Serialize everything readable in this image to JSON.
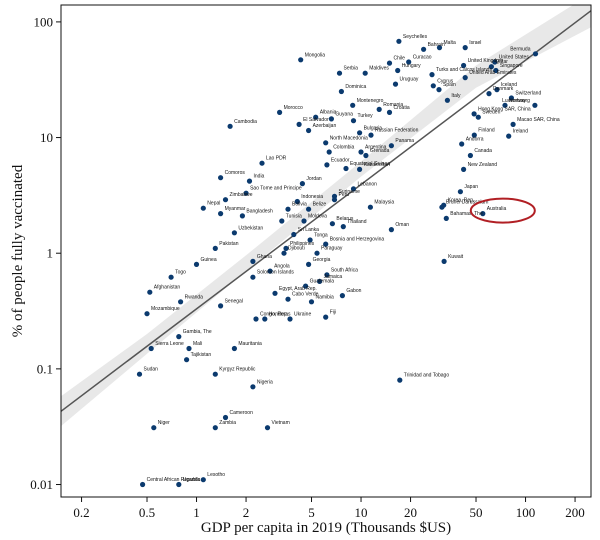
{
  "chart_data": {
    "type": "scatter",
    "title": "",
    "xlabel": "GDP per capita in 2019 (Thousands $US)",
    "ylabel": "% of people fully vaccinated",
    "x_scale": "log",
    "y_scale": "log",
    "xlim": [
      0.15,
      250
    ],
    "ylim": [
      0.0078,
      140
    ],
    "x_ticks": [
      0.2,
      0.5,
      1,
      2,
      5,
      10,
      20,
      50,
      100,
      200
    ],
    "x_tick_labels": [
      "0.2",
      "0.5",
      "1",
      "2",
      "5",
      "10",
      "20",
      "50",
      "100",
      "200"
    ],
    "y_ticks": [
      0.01,
      0.1,
      1,
      10,
      100
    ],
    "y_tick_labels": [
      "0.01",
      "0.1",
      "1",
      "10",
      "100"
    ],
    "grid": false,
    "trend_line": {
      "x": [
        0.15,
        250
      ],
      "y": [
        0.043,
        125
      ]
    },
    "confidence_band": {
      "x": [
        0.15,
        0.5,
        2,
        10,
        50,
        250
      ],
      "lower": [
        0.032,
        0.135,
        0.7,
        4.6,
        27,
        90
      ],
      "upper": [
        0.058,
        0.2,
        0.96,
        6.2,
        42,
        175
      ]
    },
    "highlight": {
      "label": "Australia",
      "x": 55,
      "y": 2.2
    },
    "points": [
      {
        "label": "Seychelles",
        "x": 17,
        "y": 68
      },
      {
        "label": "Bahrain",
        "x": 24,
        "y": 58
      },
      {
        "label": "Malta",
        "x": 30,
        "y": 60
      },
      {
        "label": "Israel",
        "x": 43,
        "y": 60
      },
      {
        "label": "United States",
        "x": 65,
        "y": 45
      },
      {
        "label": "Bermuda",
        "x": 115,
        "y": 53
      },
      {
        "label": "Chile",
        "x": 14.9,
        "y": 44
      },
      {
        "label": "Curacao",
        "x": 19.5,
        "y": 45
      },
      {
        "label": "United Kingdom",
        "x": 42,
        "y": 42
      },
      {
        "label": "Qatar",
        "x": 62,
        "y": 41
      },
      {
        "label": "Mongolia",
        "x": 4.3,
        "y": 47
      },
      {
        "label": "Serbia",
        "x": 7.4,
        "y": 36
      },
      {
        "label": "Maldives",
        "x": 10.6,
        "y": 36
      },
      {
        "label": "Hungary",
        "x": 16.7,
        "y": 38
      },
      {
        "label": "Turks and Caicos Islands",
        "x": 27,
        "y": 35
      },
      {
        "label": "United Arab Emirates",
        "x": 43,
        "y": 33
      },
      {
        "label": "Singapore",
        "x": 66,
        "y": 38
      },
      {
        "label": "Uruguay",
        "x": 16.2,
        "y": 29
      },
      {
        "label": "Cyprus",
        "x": 27.5,
        "y": 28
      },
      {
        "label": "Spain",
        "x": 29.8,
        "y": 26
      },
      {
        "label": "Iceland",
        "x": 67,
        "y": 26
      },
      {
        "label": "Denmark",
        "x": 60,
        "y": 24
      },
      {
        "label": "Switzerland",
        "x": 82,
        "y": 22
      },
      {
        "label": "Dominica",
        "x": 7.6,
        "y": 25
      },
      {
        "label": "Italy",
        "x": 33.5,
        "y": 21
      },
      {
        "label": "Norway",
        "x": 75,
        "y": 19
      },
      {
        "label": "Luxembourg",
        "x": 114,
        "y": 19
      },
      {
        "label": "Montenegro",
        "x": 8.9,
        "y": 19
      },
      {
        "label": "Romania",
        "x": 12.9,
        "y": 17.5
      },
      {
        "label": "Croatia",
        "x": 14.9,
        "y": 16.5
      },
      {
        "label": "Hong Kong SAR, China",
        "x": 48.7,
        "y": 16
      },
      {
        "label": "Sweden",
        "x": 51.6,
        "y": 15
      },
      {
        "label": "Macao SAR, China",
        "x": 84,
        "y": 13
      },
      {
        "label": "Morocco",
        "x": 3.2,
        "y": 16.5
      },
      {
        "label": "Albania",
        "x": 5.3,
        "y": 15
      },
      {
        "label": "Guyana",
        "x": 6.6,
        "y": 14.5
      },
      {
        "label": "Turkey",
        "x": 9,
        "y": 14
      },
      {
        "label": "Cambodia",
        "x": 1.6,
        "y": 12.5
      },
      {
        "label": "El Salvador",
        "x": 4.2,
        "y": 13
      },
      {
        "label": "Azerbaijan",
        "x": 4.8,
        "y": 11.5
      },
      {
        "label": "Bulgaria",
        "x": 9.8,
        "y": 11
      },
      {
        "label": "Russian Federation",
        "x": 11.5,
        "y": 10.5
      },
      {
        "label": "Finland",
        "x": 48.8,
        "y": 10.5
      },
      {
        "label": "Ireland",
        "x": 79,
        "y": 10.3
      },
      {
        "label": "North Macedonia",
        "x": 6.1,
        "y": 9
      },
      {
        "label": "Panama",
        "x": 15.3,
        "y": 8.5
      },
      {
        "label": "Andorra",
        "x": 40.9,
        "y": 8.8
      },
      {
        "label": "Colombia",
        "x": 6.4,
        "y": 7.5
      },
      {
        "label": "Argentina",
        "x": 10,
        "y": 7.5
      },
      {
        "label": "Grenada",
        "x": 10.7,
        "y": 7
      },
      {
        "label": "Canada",
        "x": 46.2,
        "y": 7
      },
      {
        "label": "Lao PDR",
        "x": 2.5,
        "y": 6
      },
      {
        "label": "Ecuador",
        "x": 6.2,
        "y": 5.8
      },
      {
        "label": "Equatorial Guinea",
        "x": 8.1,
        "y": 5.4
      },
      {
        "label": "Kazakhstan",
        "x": 9.8,
        "y": 5.3
      },
      {
        "label": "New Zealand",
        "x": 42,
        "y": 5.3
      },
      {
        "label": "Comoros",
        "x": 1.4,
        "y": 4.5
      },
      {
        "label": "India",
        "x": 2.1,
        "y": 4.2
      },
      {
        "label": "Jordan",
        "x": 4.4,
        "y": 4
      },
      {
        "label": "Lebanon",
        "x": 9,
        "y": 3.6
      },
      {
        "label": "Sao Tome and Principe",
        "x": 2,
        "y": 3.3
      },
      {
        "label": "Suriname",
        "x": 6.9,
        "y": 3.1
      },
      {
        "label": "Peru",
        "x": 6.9,
        "y": 2.9
      },
      {
        "label": "Japan",
        "x": 40.2,
        "y": 3.4
      },
      {
        "label": "Korea, Rep.",
        "x": 31.8,
        "y": 2.6
      },
      {
        "label": "Zimbabwe",
        "x": 1.5,
        "y": 2.9
      },
      {
        "label": "Indonesia",
        "x": 4.1,
        "y": 2.8
      },
      {
        "label": "Malaysia",
        "x": 11.4,
        "y": 2.5
      },
      {
        "label": "Nepal",
        "x": 1.1,
        "y": 2.45
      },
      {
        "label": "Bolivia",
        "x": 3.6,
        "y": 2.4
      },
      {
        "label": "Belize",
        "x": 4.8,
        "y": 2.4
      },
      {
        "label": "Brunei Darussalam",
        "x": 31,
        "y": 2.5
      },
      {
        "label": "Australia",
        "x": 55,
        "y": 2.2
      },
      {
        "label": "Bahamas, The",
        "x": 33,
        "y": 2
      },
      {
        "label": "Myanmar",
        "x": 1.4,
        "y": 2.2
      },
      {
        "label": "Bangladesh",
        "x": 1.9,
        "y": 2.1
      },
      {
        "label": "Tunisia",
        "x": 3.3,
        "y": 1.9
      },
      {
        "label": "Moldova",
        "x": 4.5,
        "y": 1.9
      },
      {
        "label": "Belarus",
        "x": 6.7,
        "y": 1.8
      },
      {
        "label": "Thailand",
        "x": 7.8,
        "y": 1.7
      },
      {
        "label": "Oman",
        "x": 15.3,
        "y": 1.6
      },
      {
        "label": "Uzbekistan",
        "x": 1.7,
        "y": 1.5
      },
      {
        "label": "Sri Lanka",
        "x": 3.9,
        "y": 1.45
      },
      {
        "label": "Tonga",
        "x": 4.9,
        "y": 1.3
      },
      {
        "label": "Philippines",
        "x": 3.5,
        "y": 1.1
      },
      {
        "label": "Bosnia and Herzegovina",
        "x": 6.1,
        "y": 1.2
      },
      {
        "label": "Pakistan",
        "x": 1.3,
        "y": 1.1
      },
      {
        "label": "Djibouti",
        "x": 3.4,
        "y": 1
      },
      {
        "label": "Paraguay",
        "x": 5.4,
        "y": 1
      },
      {
        "label": "Kuwait",
        "x": 32,
        "y": 0.85
      },
      {
        "label": "Guinea",
        "x": 1,
        "y": 0.8
      },
      {
        "label": "Ghana",
        "x": 2.2,
        "y": 0.85
      },
      {
        "label": "Georgia",
        "x": 4.8,
        "y": 0.8
      },
      {
        "label": "Angola",
        "x": 2.8,
        "y": 0.7
      },
      {
        "label": "South Africa",
        "x": 6.2,
        "y": 0.65
      },
      {
        "label": "Togo",
        "x": 0.7,
        "y": 0.62
      },
      {
        "label": "Solomon Islands",
        "x": 2.2,
        "y": 0.62
      },
      {
        "label": "Jamaica",
        "x": 5.6,
        "y": 0.57
      },
      {
        "label": "Guatemala",
        "x": 4.6,
        "y": 0.52
      },
      {
        "label": "Afghanistan",
        "x": 0.52,
        "y": 0.46
      },
      {
        "label": "Egypt, Arab Rep.",
        "x": 3.0,
        "y": 0.45
      },
      {
        "label": "Cabo Verde",
        "x": 3.6,
        "y": 0.4
      },
      {
        "label": "Gabon",
        "x": 7.7,
        "y": 0.43
      },
      {
        "label": "Rwanda",
        "x": 0.8,
        "y": 0.38
      },
      {
        "label": "Namibia",
        "x": 5,
        "y": 0.38
      },
      {
        "label": "Senegal",
        "x": 1.4,
        "y": 0.35
      },
      {
        "label": "Mozambique",
        "x": 0.5,
        "y": 0.3
      },
      {
        "label": "Congo, Rep.",
        "x": 2.3,
        "y": 0.27
      },
      {
        "label": "Honduras",
        "x": 2.6,
        "y": 0.27
      },
      {
        "label": "Ukraine",
        "x": 3.7,
        "y": 0.27
      },
      {
        "label": "Fiji",
        "x": 6.1,
        "y": 0.28
      },
      {
        "label": "Gambia, The",
        "x": 0.78,
        "y": 0.19
      },
      {
        "label": "Sierra Leone",
        "x": 0.53,
        "y": 0.15
      },
      {
        "label": "Mali",
        "x": 0.9,
        "y": 0.15
      },
      {
        "label": "Mauritania",
        "x": 1.7,
        "y": 0.15
      },
      {
        "label": "Tajikistan",
        "x": 0.87,
        "y": 0.12
      },
      {
        "label": "Sudan",
        "x": 0.45,
        "y": 0.09
      },
      {
        "label": "Kyrgyz Republic",
        "x": 1.3,
        "y": 0.09
      },
      {
        "label": "Trinidad and Tobago",
        "x": 17.2,
        "y": 0.08
      },
      {
        "label": "Nigeria",
        "x": 2.2,
        "y": 0.07
      },
      {
        "label": "Niger",
        "x": 0.55,
        "y": 0.031
      },
      {
        "label": "Cameroon",
        "x": 1.5,
        "y": 0.038
      },
      {
        "label": "Zambia",
        "x": 1.3,
        "y": 0.031
      },
      {
        "label": "Vietnam",
        "x": 2.7,
        "y": 0.031
      },
      {
        "label": "Lesotho",
        "x": 1.1,
        "y": 0.011
      },
      {
        "label": "Central African Republic",
        "x": 0.47,
        "y": 0.01
      },
      {
        "label": "Uganda",
        "x": 0.78,
        "y": 0.01
      }
    ]
  },
  "colors": {
    "point": "#0b3a6e",
    "trend_line": "#555555",
    "confidence_band": "#e8e8e8",
    "highlight_ellipse": "#b11f24",
    "axis": "#111111",
    "background": "#ffffff"
  }
}
